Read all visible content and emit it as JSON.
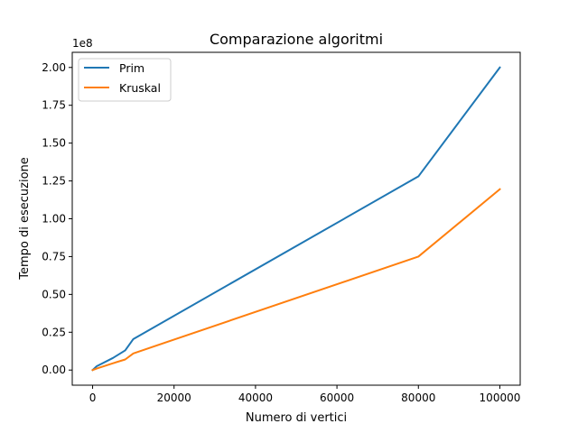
{
  "chart_data": {
    "type": "line",
    "title": "Comparazione algoritmi",
    "xlabel": "Numero di vertici",
    "ylabel": "Tempo di esecuzione",
    "y_offset_label": "1e8",
    "xlim": [
      -5000,
      105000
    ],
    "ylim": [
      -0.1,
      2.1
    ],
    "x_ticks": [
      0,
      20000,
      40000,
      60000,
      80000,
      100000
    ],
    "x_tick_labels": [
      "0",
      "20000",
      "40000",
      "60000",
      "80000",
      "100000"
    ],
    "y_ticks": [
      0,
      0.25,
      0.5,
      0.75,
      1.0,
      1.25,
      1.5,
      1.75,
      2.0
    ],
    "y_tick_labels": [
      "0.00",
      "0.25",
      "0.50",
      "0.75",
      "1.00",
      "1.25",
      "1.50",
      "1.75",
      "2.00"
    ],
    "grid": false,
    "legend_position": "top-left",
    "series": [
      {
        "name": "Prim",
        "color": "#1f77b4",
        "x": [
          0,
          1000,
          5000,
          8000,
          10000,
          80000,
          100000
        ],
        "y": [
          0.0,
          0.025,
          0.08,
          0.13,
          0.205,
          1.28,
          2.0
        ]
      },
      {
        "name": "Kruskal",
        "color": "#ff7f0e",
        "x": [
          0,
          1000,
          5000,
          8000,
          10000,
          80000,
          100000
        ],
        "y": [
          0.0,
          0.01,
          0.045,
          0.07,
          0.11,
          0.75,
          1.195
        ]
      }
    ]
  }
}
